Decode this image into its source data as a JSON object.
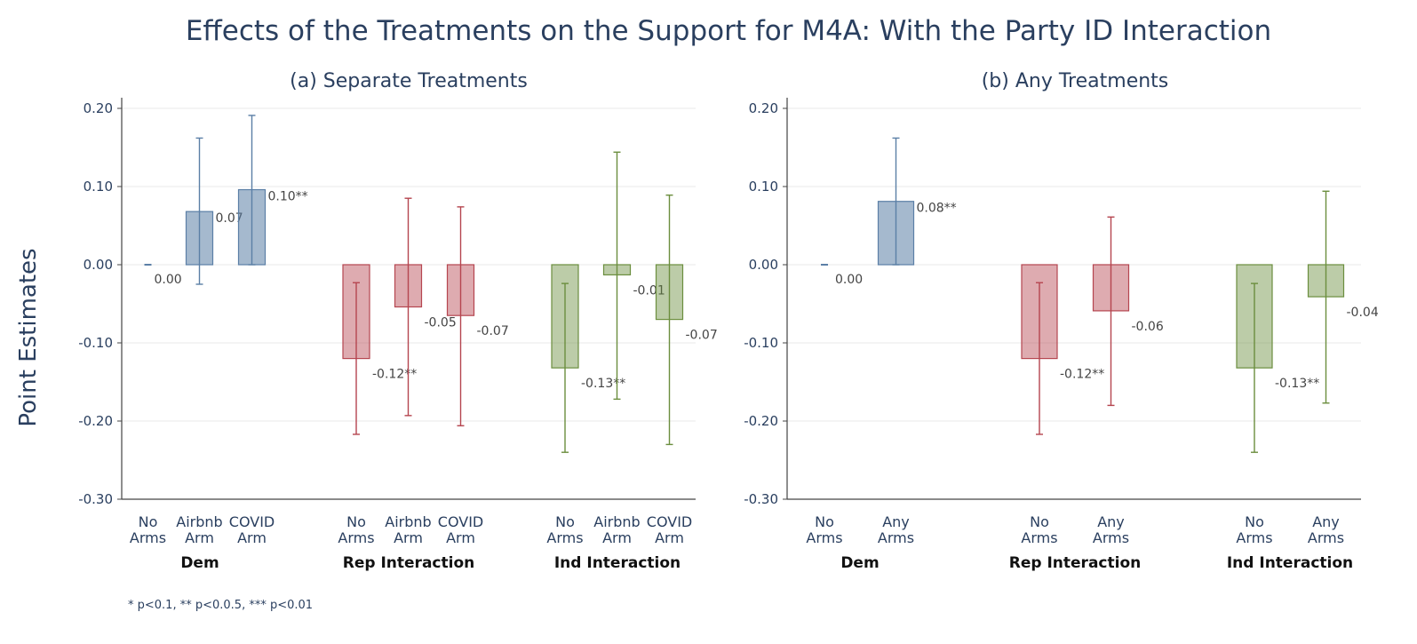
{
  "title": "Effects of the Treatments on the Support for M4A: With the Party ID Interaction",
  "ylabel": "Point Estimates",
  "footnote": "* p<0.1, ** p<0.0.5, *** p<0.01",
  "colors": {
    "Dem": "#5b7fa6",
    "Rep": "#b5454f",
    "Ind": "#6b8e3e"
  },
  "chart_data": [
    {
      "type": "bar",
      "title": "(a) Separate Treatments",
      "ylabel": "Point Estimates",
      "ylim": [
        -0.3,
        0.21
      ],
      "yticks": [
        "0.20",
        "0.10",
        "0.00",
        "-0.10",
        "-0.20",
        "-0.30"
      ],
      "ytick_values": [
        0.2,
        0.1,
        0.0,
        -0.1,
        -0.2,
        -0.3
      ],
      "grid": true,
      "groups": [
        {
          "name": "Dem",
          "color_key": "Dem",
          "bars": [
            {
              "category": [
                "No",
                "Arms"
              ],
              "value": 0.0,
              "ci": [
                0.0,
                0.0
              ],
              "label": "0.00"
            },
            {
              "category": [
                "Airbnb",
                "Arm"
              ],
              "value": 0.068,
              "ci": [
                -0.025,
                0.162
              ],
              "label": "0.07"
            },
            {
              "category": [
                "COVID",
                "Arm"
              ],
              "value": 0.096,
              "ci": [
                0.0,
                0.191
              ],
              "label": "0.10**"
            }
          ]
        },
        {
          "name": "Rep Interaction",
          "color_key": "Rep",
          "bars": [
            {
              "category": [
                "No",
                "Arms"
              ],
              "value": -0.12,
              "ci": [
                -0.217,
                -0.023
              ],
              "label": "-0.12**"
            },
            {
              "category": [
                "Airbnb",
                "Arm"
              ],
              "value": -0.054,
              "ci": [
                -0.193,
                0.085
              ],
              "label": "-0.05"
            },
            {
              "category": [
                "COVID",
                "Arm"
              ],
              "value": -0.065,
              "ci": [
                -0.206,
                0.074
              ],
              "label": "-0.07"
            }
          ]
        },
        {
          "name": "Ind Interaction",
          "color_key": "Ind",
          "bars": [
            {
              "category": [
                "No",
                "Arms"
              ],
              "value": -0.132,
              "ci": [
                -0.24,
                -0.024
              ],
              "label": "-0.13**"
            },
            {
              "category": [
                "Airbnb",
                "Arm"
              ],
              "value": -0.013,
              "ci": [
                -0.172,
                0.144
              ],
              "label": "-0.01"
            },
            {
              "category": [
                "COVID",
                "Arm"
              ],
              "value": -0.07,
              "ci": [
                -0.23,
                0.089
              ],
              "label": "-0.07"
            }
          ]
        }
      ]
    },
    {
      "type": "bar",
      "title": "(b) Any Treatments",
      "ylabel": "",
      "ylim": [
        -0.3,
        0.21
      ],
      "yticks": [
        "0.20",
        "0.10",
        "0.00",
        "-0.10",
        "-0.20",
        "-0.30"
      ],
      "ytick_values": [
        0.2,
        0.1,
        0.0,
        -0.1,
        -0.2,
        -0.3
      ],
      "grid": true,
      "groups": [
        {
          "name": "Dem",
          "color_key": "Dem",
          "bars": [
            {
              "category": [
                "No",
                "Arms"
              ],
              "value": 0.0,
              "ci": [
                0.0,
                0.0
              ],
              "label": "0.00"
            },
            {
              "category": [
                "Any",
                "Arms"
              ],
              "value": 0.081,
              "ci": [
                0.0,
                0.162
              ],
              "label": "0.08**"
            }
          ]
        },
        {
          "name": "Rep Interaction",
          "color_key": "Rep",
          "bars": [
            {
              "category": [
                "No",
                "Arms"
              ],
              "value": -0.12,
              "ci": [
                -0.217,
                -0.023
              ],
              "label": "-0.12**"
            },
            {
              "category": [
                "Any",
                "Arms"
              ],
              "value": -0.059,
              "ci": [
                -0.18,
                0.061
              ],
              "label": "-0.06"
            }
          ]
        },
        {
          "name": "Ind Interaction",
          "color_key": "Ind",
          "bars": [
            {
              "category": [
                "No",
                "Arms"
              ],
              "value": -0.132,
              "ci": [
                -0.24,
                -0.024
              ],
              "label": "-0.13**"
            },
            {
              "category": [
                "Any",
                "Arms"
              ],
              "value": -0.041,
              "ci": [
                -0.177,
                0.094
              ],
              "label": "-0.04"
            }
          ]
        }
      ]
    }
  ]
}
